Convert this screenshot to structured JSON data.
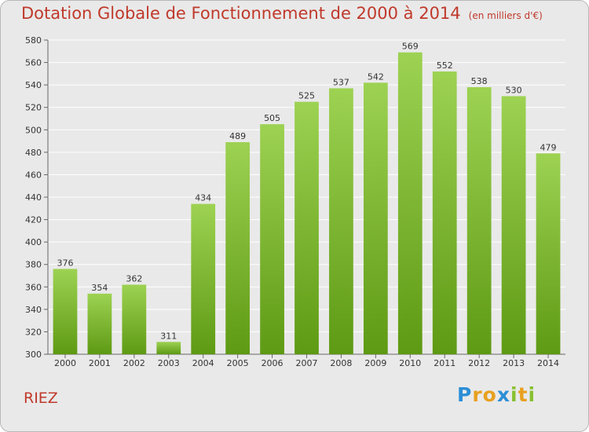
{
  "chart_data": {
    "type": "bar",
    "title": "Dotation Globale de Fonctionnement de 2000 à 2014",
    "unit": "(en milliers d'€)",
    "categories": [
      "2000",
      "2001",
      "2002",
      "2003",
      "2004",
      "2005",
      "2006",
      "2007",
      "2008",
      "2009",
      "2010",
      "2011",
      "2012",
      "2013",
      "2014"
    ],
    "values": [
      376,
      354,
      362,
      311,
      434,
      489,
      505,
      525,
      537,
      542,
      569,
      552,
      538,
      530,
      479
    ],
    "ylim": [
      300,
      580
    ],
    "yticks": [
      300,
      320,
      340,
      360,
      380,
      400,
      420,
      440,
      460,
      480,
      500,
      520,
      540,
      560,
      580
    ],
    "grid": true,
    "colors": {
      "bar_light": "#9dd252",
      "bar_dark": "#5e9a14",
      "grid": "#ffffff",
      "text": "#333333",
      "title": "#c0392b"
    }
  },
  "place": "RIEZ",
  "logo": {
    "letters": [
      "P",
      "r",
      "o",
      "x",
      "i",
      "t",
      "i"
    ],
    "colors": [
      "#2c8fd6",
      "#e8a020",
      "#e8a020",
      "#2c8fd6",
      "#88c030",
      "#e8a020",
      "#88c030"
    ]
  }
}
